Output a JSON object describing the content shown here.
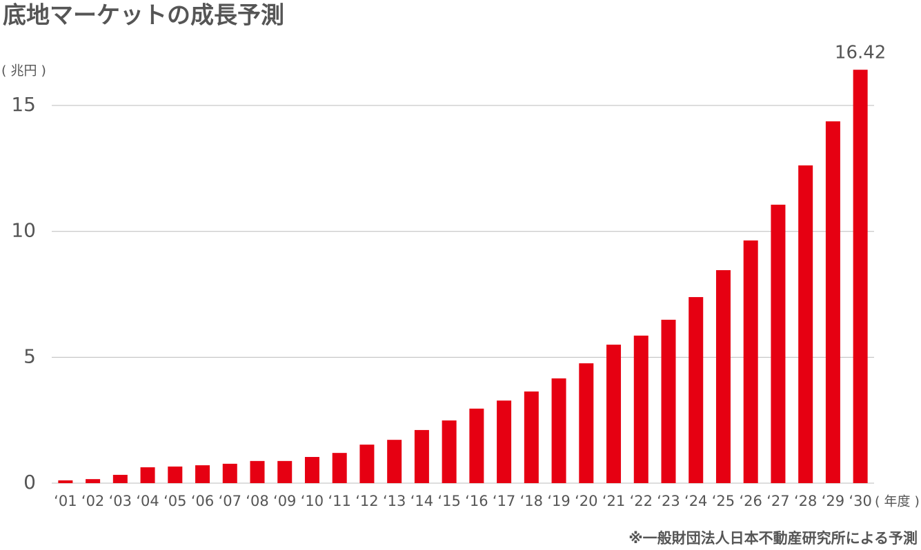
{
  "chart_data": {
    "type": "bar",
    "title": "底地マーケットの成長予測",
    "y_label": "( 兆円 )",
    "x_label": "( 年度 )",
    "source": "※一般財団法人日本不動産研究所による予測",
    "categories": [
      "‘01",
      "‘02",
      "‘03",
      "‘04",
      "‘05",
      "‘06",
      "‘07",
      "‘08",
      "‘09",
      "‘10",
      "‘11",
      "‘12",
      "‘13",
      "‘14",
      "‘15",
      "‘16",
      "‘17",
      "‘18",
      "‘19",
      "‘20",
      "‘21",
      "‘22",
      "‘23",
      "‘24",
      "‘25",
      "‘26",
      "‘27",
      "‘28",
      "‘29",
      "‘30"
    ],
    "values": [
      0.11,
      0.16,
      0.33,
      0.63,
      0.66,
      0.71,
      0.77,
      0.88,
      0.88,
      1.04,
      1.2,
      1.53,
      1.72,
      2.11,
      2.49,
      2.96,
      3.28,
      3.64,
      4.16,
      4.76,
      5.5,
      5.86,
      6.49,
      7.39,
      8.46,
      9.64,
      11.06,
      12.62,
      14.37,
      16.42
    ],
    "value_labels": [
      null,
      null,
      null,
      null,
      null,
      null,
      null,
      null,
      null,
      null,
      null,
      null,
      null,
      null,
      null,
      null,
      null,
      null,
      null,
      null,
      null,
      null,
      null,
      null,
      null,
      null,
      null,
      null,
      null,
      "16.42"
    ],
    "color": "#e60012",
    "ylim": [
      0,
      17
    ],
    "yticks": [
      0,
      5,
      10,
      15
    ],
    "grid": true
  }
}
